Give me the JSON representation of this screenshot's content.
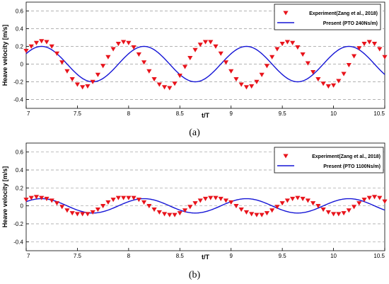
{
  "chart_data": [
    {
      "type": "line",
      "panel_label": "(a)",
      "xlabel": "t/T",
      "ylabel": "Heave velocity [m/s]",
      "xlim": [
        7,
        10.5
      ],
      "ylim": [
        -0.5,
        0.7
      ],
      "xticks": [
        "7",
        "7.5",
        "8",
        "8.5",
        "9",
        "9.5",
        "10",
        "10.5"
      ],
      "yticks": [
        "-0.4",
        "-0.2",
        "0",
        "0.2",
        "0.4",
        "0.6"
      ],
      "grid": true,
      "legend_position": "top-right",
      "series": [
        {
          "name": "Experiment(Zang et al., 2018)",
          "style": "triangle-down-marker",
          "color": "#e8141c",
          "x": [
            7.0,
            7.05,
            7.1,
            7.15,
            7.2,
            7.25,
            7.3,
            7.35,
            7.4,
            7.45,
            7.5,
            7.55,
            7.6,
            7.65,
            7.7,
            7.75,
            7.8,
            7.85,
            7.9,
            7.95,
            8.0,
            8.05,
            8.1,
            8.15,
            8.2,
            8.25,
            8.3,
            8.35,
            8.4,
            8.45,
            8.5,
            8.55,
            8.6,
            8.65,
            8.7,
            8.75,
            8.8,
            8.85,
            8.9,
            8.95,
            9.0,
            9.05,
            9.1,
            9.15,
            9.2,
            9.25,
            9.3,
            9.35,
            9.4,
            9.45,
            9.5,
            9.55,
            9.6,
            9.65,
            9.7,
            9.75,
            9.8,
            9.85,
            9.9,
            9.95,
            10.0,
            10.05,
            10.1,
            10.15,
            10.2,
            10.25,
            10.3,
            10.35,
            10.4,
            10.45,
            10.5
          ],
          "y": [
            0.15,
            0.2,
            0.24,
            0.26,
            0.25,
            0.2,
            0.12,
            0.02,
            -0.08,
            -0.17,
            -0.23,
            -0.26,
            -0.25,
            -0.2,
            -0.12,
            -0.02,
            0.08,
            0.17,
            0.23,
            0.25,
            0.24,
            0.19,
            0.11,
            0.02,
            -0.08,
            -0.17,
            -0.23,
            -0.26,
            -0.27,
            -0.22,
            -0.13,
            -0.03,
            0.07,
            0.16,
            0.22,
            0.25,
            0.25,
            0.2,
            0.12,
            0.02,
            -0.08,
            -0.17,
            -0.23,
            -0.26,
            -0.25,
            -0.2,
            -0.12,
            -0.02,
            0.08,
            0.17,
            0.23,
            0.25,
            0.24,
            0.19,
            0.11,
            0.01,
            -0.09,
            -0.17,
            -0.22,
            -0.25,
            -0.24,
            -0.19,
            -0.11,
            -0.01,
            0.09,
            0.18,
            0.23,
            0.25,
            0.23,
            0.17,
            0.08
          ]
        },
        {
          "name": "Present (PTO 240Ns/m)",
          "style": "solid-line",
          "color": "#1515d6",
          "amplitude": 0.2,
          "period": 1.0,
          "phase_peak": 7.15
        }
      ]
    },
    {
      "type": "line",
      "panel_label": "(b)",
      "xlabel": "t/T",
      "ylabel": "Heave velocity [m/s]",
      "xlim": [
        7,
        10.5
      ],
      "ylim": [
        -0.5,
        0.7
      ],
      "xticks": [
        "7",
        "7.5",
        "8",
        "8.5",
        "9",
        "9.5",
        "10",
        "10.5"
      ],
      "yticks": [
        "-0.4",
        "-0.2",
        "0",
        "0.2",
        "0.4",
        "0.6"
      ],
      "grid": true,
      "legend_position": "top-right",
      "series": [
        {
          "name": "Experiment(Zang et al., 2018)",
          "style": "triangle-down-marker",
          "color": "#e8141c",
          "x": [
            7.0,
            7.05,
            7.1,
            7.15,
            7.2,
            7.25,
            7.3,
            7.35,
            7.4,
            7.45,
            7.5,
            7.55,
            7.6,
            7.65,
            7.7,
            7.75,
            7.8,
            7.85,
            7.9,
            7.95,
            8.0,
            8.05,
            8.1,
            8.15,
            8.2,
            8.25,
            8.3,
            8.35,
            8.4,
            8.45,
            8.5,
            8.55,
            8.6,
            8.65,
            8.7,
            8.75,
            8.8,
            8.85,
            8.9,
            8.95,
            9.0,
            9.05,
            9.1,
            9.15,
            9.2,
            9.25,
            9.3,
            9.35,
            9.4,
            9.45,
            9.5,
            9.55,
            9.6,
            9.65,
            9.7,
            9.75,
            9.8,
            9.85,
            9.9,
            9.95,
            10.0,
            10.05,
            10.1,
            10.15,
            10.2,
            10.25,
            10.3,
            10.35,
            10.4,
            10.45,
            10.5
          ],
          "y": [
            0.07,
            0.09,
            0.1,
            0.09,
            0.08,
            0.06,
            0.03,
            -0.01,
            -0.05,
            -0.08,
            -0.09,
            -0.09,
            -0.09,
            -0.07,
            -0.04,
            0.0,
            0.04,
            0.07,
            0.09,
            0.09,
            0.09,
            0.09,
            0.07,
            0.04,
            0.0,
            -0.04,
            -0.07,
            -0.09,
            -0.1,
            -0.1,
            -0.08,
            -0.05,
            -0.01,
            0.03,
            0.06,
            0.08,
            0.09,
            0.09,
            0.08,
            0.06,
            0.04,
            0.0,
            -0.04,
            -0.07,
            -0.09,
            -0.1,
            -0.1,
            -0.08,
            -0.05,
            -0.01,
            0.03,
            0.06,
            0.08,
            0.09,
            0.08,
            0.06,
            0.03,
            0.0,
            -0.04,
            -0.07,
            -0.09,
            -0.09,
            -0.08,
            -0.05,
            -0.01,
            0.03,
            0.07,
            0.09,
            0.1,
            0.09,
            0.05
          ]
        },
        {
          "name": "Present (PTO 1100Ns/m)",
          "style": "solid-line",
          "color": "#1515d6",
          "amplitude": 0.08,
          "period": 1.0,
          "phase_peak": 7.15
        }
      ]
    }
  ]
}
